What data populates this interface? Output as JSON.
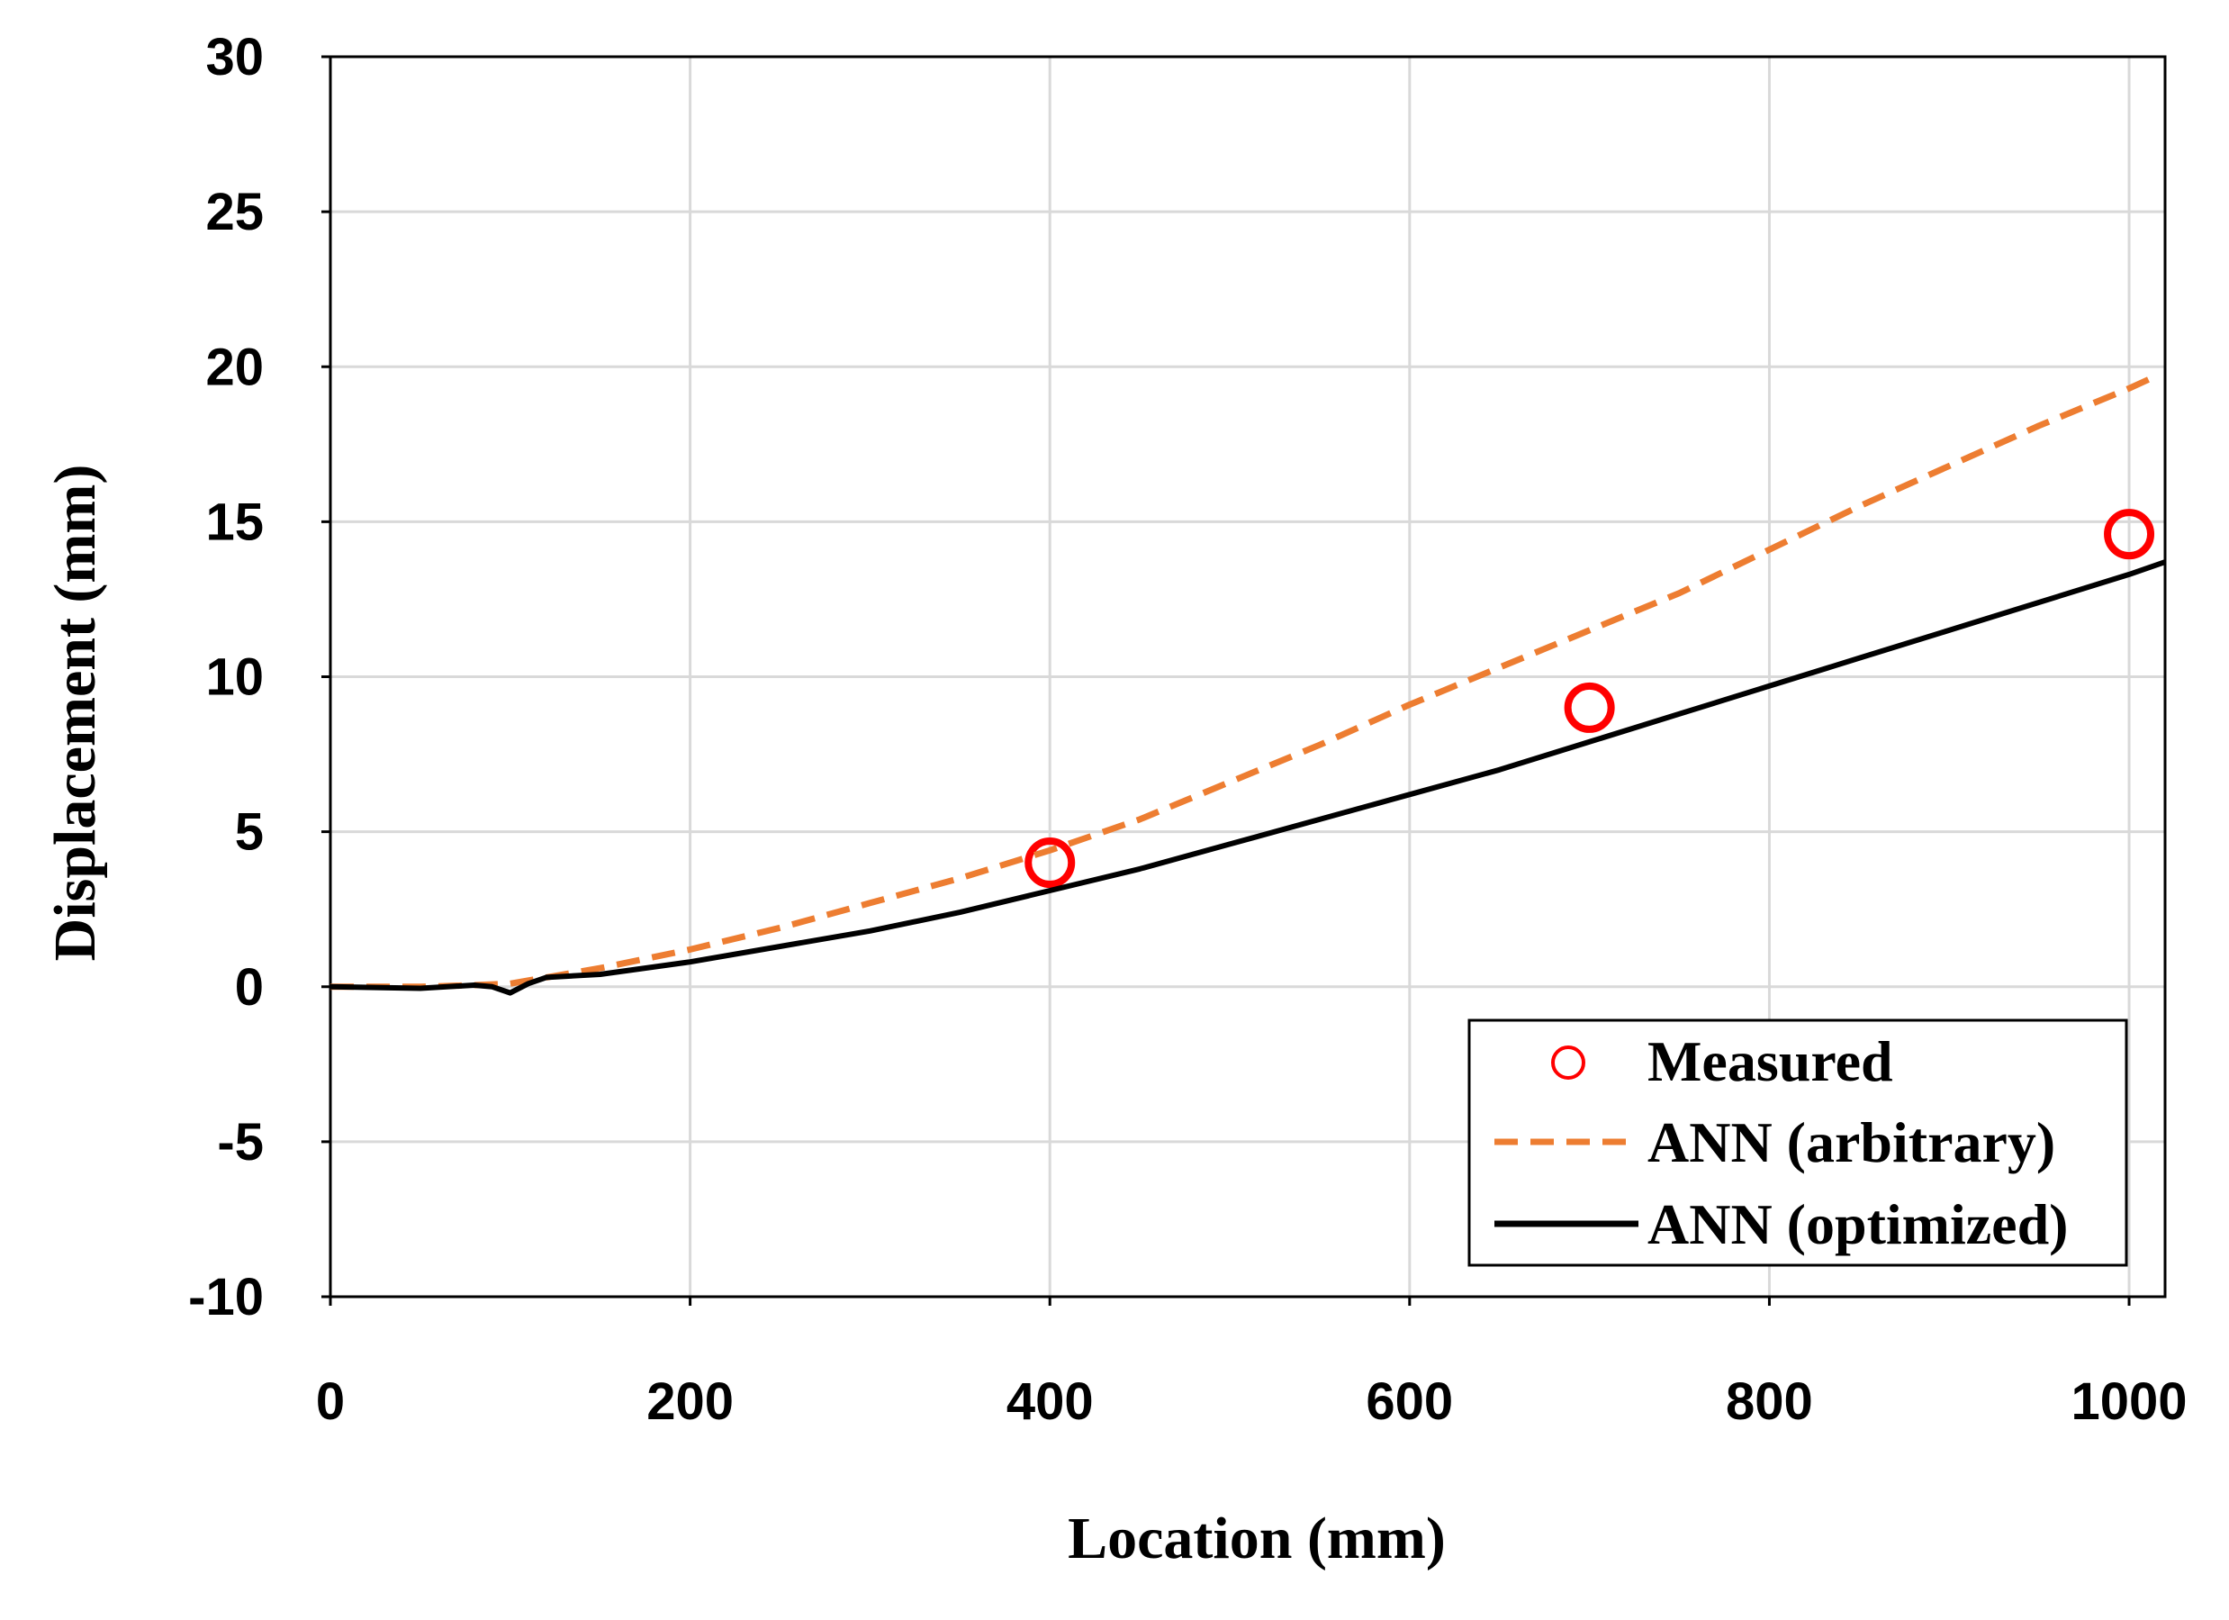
{
  "chart_data": {
    "type": "line",
    "xlabel": "Location (mm)",
    "ylabel": "Displacement (mm)",
    "xlim": [
      0,
      1020
    ],
    "ylim": [
      -10,
      30
    ],
    "x_ticks": [
      "0",
      "200",
      "400",
      "600",
      "800",
      "1000"
    ],
    "y_ticks": [
      "-10",
      "-5",
      "0",
      "5",
      "10",
      "15",
      "20",
      "25",
      "30"
    ],
    "x_tick_values": [
      0,
      200,
      400,
      600,
      800,
      1000
    ],
    "y_tick_values": [
      -10,
      -5,
      0,
      5,
      10,
      15,
      20,
      25,
      30
    ],
    "grid": true,
    "legend_position": "bottom-right",
    "series": [
      {
        "name": "Measured",
        "style": "markers",
        "marker": "open-circle",
        "color": "#ff0000",
        "x": [
          400,
          700,
          1000
        ],
        "y": [
          4.0,
          9.0,
          14.6
        ]
      },
      {
        "name": "ANN (arbitrary)",
        "style": "dashed",
        "color": "#ed7d31",
        "x": [
          0,
          50,
          80,
          100,
          120,
          150,
          200,
          250,
          300,
          350,
          400,
          450,
          500,
          550,
          600,
          650,
          700,
          750,
          800,
          850,
          900,
          950,
          1000,
          1015
        ],
        "y": [
          0.0,
          0.0,
          0.05,
          0.1,
          0.3,
          0.6,
          1.2,
          1.9,
          2.7,
          3.5,
          4.4,
          5.4,
          6.6,
          7.8,
          9.1,
          10.3,
          11.5,
          12.7,
          14.1,
          15.5,
          16.8,
          18.1,
          19.3,
          19.7
        ]
      },
      {
        "name": "ANN (optimized)",
        "style": "solid",
        "color": "#000000",
        "x": [
          0,
          50,
          80,
          90,
          100,
          110,
          120,
          150,
          200,
          250,
          300,
          350,
          400,
          450,
          500,
          550,
          600,
          650,
          700,
          750,
          800,
          850,
          900,
          950,
          1000,
          1020
        ],
        "y": [
          0.0,
          -0.05,
          0.05,
          0.0,
          -0.2,
          0.1,
          0.3,
          0.4,
          0.8,
          1.3,
          1.8,
          2.4,
          3.1,
          3.8,
          4.6,
          5.4,
          6.2,
          7.0,
          7.9,
          8.8,
          9.7,
          10.6,
          11.5,
          12.4,
          13.3,
          13.7
        ]
      }
    ]
  }
}
